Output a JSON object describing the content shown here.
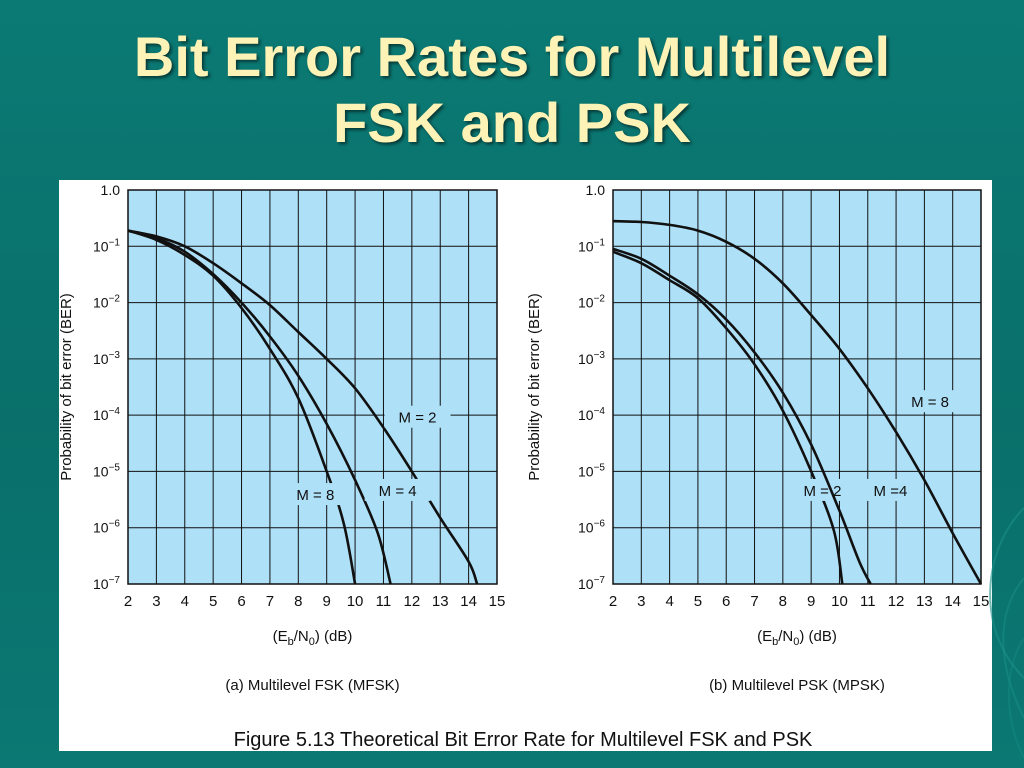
{
  "slide": {
    "title_line1": "Bit Error Rates for Multilevel",
    "title_line2": "FSK and PSK",
    "figure_caption": "Figure 5.13  Theoretical Bit Error Rate for Multilevel FSK and PSK",
    "colors": {
      "background": "#0b7470",
      "title": "#fdf3b6",
      "plot_fill": "#aee0f7",
      "grid": "#111111",
      "curve": "#111111"
    }
  },
  "chart_data": [
    {
      "type": "line",
      "subcaption": "(a) Multilevel FSK (MFSK)",
      "xlabel": "(E_b/N_0) (dB)",
      "ylabel": "Probability of bit error (BER)",
      "y_scale": "log",
      "xlim": [
        2,
        15
      ],
      "ylim": [
        1e-07,
        1.0
      ],
      "x_ticks": [
        "2",
        "3",
        "4",
        "5",
        "6",
        "7",
        "8",
        "9",
        "10",
        "11",
        "12",
        "13",
        "14",
        "15"
      ],
      "y_ticks": [
        {
          "value": 1.0,
          "base": "1.0",
          "exp": ""
        },
        {
          "value": 0.1,
          "base": "10",
          "exp": "−1"
        },
        {
          "value": 0.01,
          "base": "10",
          "exp": "−2"
        },
        {
          "value": 0.001,
          "base": "10",
          "exp": "−3"
        },
        {
          "value": 0.0001,
          "base": "10",
          "exp": "−4"
        },
        {
          "value": 1e-05,
          "base": "10",
          "exp": "−5"
        },
        {
          "value": 1e-06,
          "base": "10",
          "exp": "−6"
        },
        {
          "value": 1e-07,
          "base": "10",
          "exp": "−7"
        }
      ],
      "grid": true,
      "series": [
        {
          "name": "M = 2",
          "label_at": [
            12.2,
            9e-05
          ],
          "points": [
            [
              2,
              0.19
            ],
            [
              3,
              0.15
            ],
            [
              4,
              0.1
            ],
            [
              5,
              0.05
            ],
            [
              6,
              0.022
            ],
            [
              7,
              0.009
            ],
            [
              8,
              0.003
            ],
            [
              9,
              0.001
            ],
            [
              10,
              0.0003
            ],
            [
              11,
              6e-05
            ],
            [
              12,
              1e-05
            ],
            [
              13,
              1.5e-06
            ],
            [
              14,
              2.5e-07
            ],
            [
              14.3,
              1e-07
            ]
          ]
        },
        {
          "name": "M = 4",
          "label_at": [
            11.5,
            4.5e-06
          ],
          "points": [
            [
              2,
              0.19
            ],
            [
              3,
              0.14
            ],
            [
              4,
              0.08
            ],
            [
              5,
              0.032
            ],
            [
              6,
              0.01
            ],
            [
              7,
              0.0025
            ],
            [
              8,
              0.0005
            ],
            [
              9,
              7e-05
            ],
            [
              10,
              7e-06
            ],
            [
              10.8,
              8e-07
            ],
            [
              11.25,
              1e-07
            ]
          ]
        },
        {
          "name": "M = 8",
          "label_at": [
            8.6,
            3.8e-06
          ],
          "points": [
            [
              2,
              0.19
            ],
            [
              3,
              0.13
            ],
            [
              4,
              0.07
            ],
            [
              5,
              0.03
            ],
            [
              6,
              0.008
            ],
            [
              7,
              0.0015
            ],
            [
              8,
              0.0002
            ],
            [
              9,
              1e-05
            ],
            [
              9.6,
              1.2e-06
            ],
            [
              10.0,
              1e-07
            ]
          ]
        }
      ]
    },
    {
      "type": "line",
      "subcaption": "(b) Multilevel PSK (MPSK)",
      "xlabel": "(E_b/N_0) (dB)",
      "ylabel": "Probability of bit error (BER)",
      "y_scale": "log",
      "xlim": [
        2,
        15
      ],
      "ylim": [
        1e-07,
        1.0
      ],
      "x_ticks": [
        "2",
        "3",
        "4",
        "5",
        "6",
        "7",
        "8",
        "9",
        "10",
        "11",
        "12",
        "13",
        "14",
        "15"
      ],
      "y_ticks": [
        {
          "value": 1.0,
          "base": "1.0",
          "exp": ""
        },
        {
          "value": 0.1,
          "base": "10",
          "exp": "−1"
        },
        {
          "value": 0.01,
          "base": "10",
          "exp": "−2"
        },
        {
          "value": 0.001,
          "base": "10",
          "exp": "−3"
        },
        {
          "value": 0.0001,
          "base": "10",
          "exp": "−4"
        },
        {
          "value": 1e-05,
          "base": "10",
          "exp": "−5"
        },
        {
          "value": 1e-06,
          "base": "10",
          "exp": "−6"
        },
        {
          "value": 1e-07,
          "base": "10",
          "exp": "−7"
        }
      ],
      "grid": true,
      "series": [
        {
          "name": "M = 2",
          "label_at": [
            9.4,
            4.5e-06
          ],
          "points": [
            [
              2,
              0.08
            ],
            [
              3,
              0.05
            ],
            [
              4,
              0.025
            ],
            [
              5,
              0.012
            ],
            [
              6,
              0.0035
            ],
            [
              7,
              0.0008
            ],
            [
              8,
              0.00012
            ],
            [
              9,
              1e-05
            ],
            [
              9.8,
              9e-07
            ],
            [
              10.1,
              1e-07
            ]
          ]
        },
        {
          "name": "M =4",
          "label_at": [
            11.8,
            4.5e-06
          ],
          "points": [
            [
              2,
              0.09
            ],
            [
              3,
              0.06
            ],
            [
              4,
              0.03
            ],
            [
              5,
              0.014
            ],
            [
              6,
              0.005
            ],
            [
              7,
              0.0013
            ],
            [
              8,
              0.00025
            ],
            [
              9,
              3e-05
            ],
            [
              10,
              2e-06
            ],
            [
              10.7,
              2.5e-07
            ],
            [
              11.1,
              1e-07
            ]
          ]
        },
        {
          "name": "M = 8",
          "label_at": [
            13.2,
            0.00017
          ],
          "points": [
            [
              2,
              0.28
            ],
            [
              3,
              0.27
            ],
            [
              4,
              0.24
            ],
            [
              5,
              0.19
            ],
            [
              6,
              0.12
            ],
            [
              7,
              0.06
            ],
            [
              8,
              0.022
            ],
            [
              9,
              0.006
            ],
            [
              10,
              0.0015
            ],
            [
              11,
              0.0003
            ],
            [
              12,
              5e-05
            ],
            [
              13,
              7e-06
            ],
            [
              14,
              8e-07
            ],
            [
              15,
              1e-07
            ]
          ]
        }
      ]
    }
  ]
}
